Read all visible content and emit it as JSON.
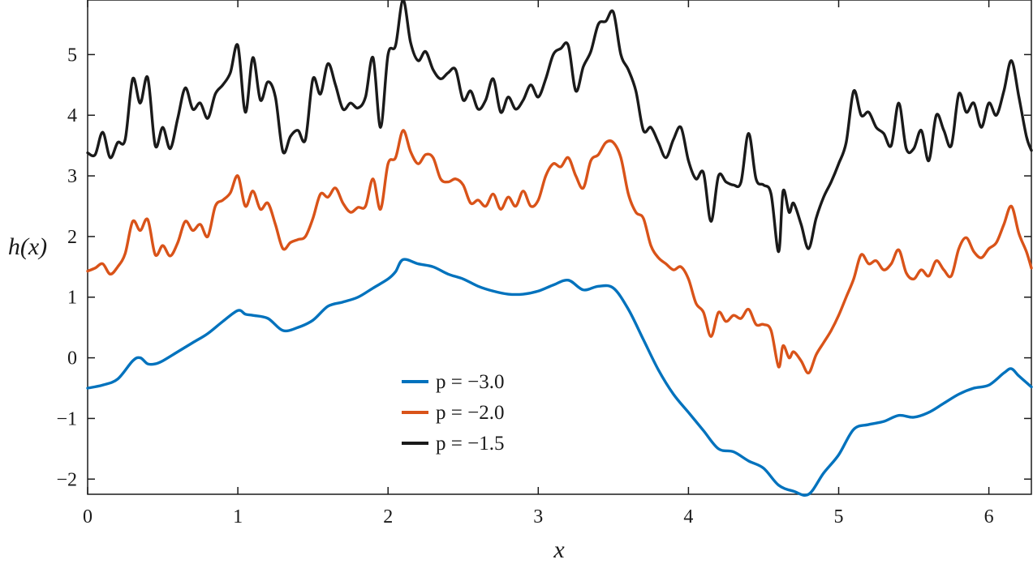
{
  "chart_data": {
    "type": "line",
    "title": "",
    "xlabel": "x",
    "ylabel": "h(x)",
    "xlim": [
      0,
      6.283
    ],
    "ylim": [
      -2.25,
      5.9
    ],
    "grid": false,
    "legend_position": "center-bottom",
    "x_ticks": [
      {
        "value": 0,
        "label": "0"
      },
      {
        "value": 1,
        "label": "1"
      },
      {
        "value": 2,
        "label": "2"
      },
      {
        "value": 3,
        "label": "3"
      },
      {
        "value": 4,
        "label": "4"
      },
      {
        "value": 5,
        "label": "5"
      },
      {
        "value": 6,
        "label": "6"
      }
    ],
    "y_ticks": [
      {
        "value": -2,
        "label": "−2"
      },
      {
        "value": -1,
        "label": "−1"
      },
      {
        "value": 0,
        "label": "0"
      },
      {
        "value": 1,
        "label": "1"
      },
      {
        "value": 2,
        "label": "2"
      },
      {
        "value": 3,
        "label": "3"
      },
      {
        "value": 4,
        "label": "4"
      },
      {
        "value": 5,
        "label": "5"
      }
    ],
    "series": [
      {
        "name": "p = −3.0",
        "color": "#0072bd",
        "x": [
          0,
          0.1,
          0.2,
          0.3,
          0.35,
          0.4,
          0.45,
          0.5,
          0.6,
          0.7,
          0.8,
          0.9,
          1.0,
          1.05,
          1.1,
          1.2,
          1.3,
          1.4,
          1.5,
          1.6,
          1.7,
          1.8,
          1.9,
          2.0,
          2.05,
          2.1,
          2.2,
          2.3,
          2.4,
          2.5,
          2.6,
          2.7,
          2.8,
          2.9,
          3.0,
          3.1,
          3.2,
          3.3,
          3.4,
          3.5,
          3.6,
          3.7,
          3.8,
          3.9,
          4.0,
          4.1,
          4.2,
          4.3,
          4.4,
          4.5,
          4.6,
          4.7,
          4.8,
          4.9,
          5.0,
          5.1,
          5.2,
          5.3,
          5.4,
          5.5,
          5.6,
          5.7,
          5.8,
          5.9,
          6.0,
          6.1,
          6.15,
          6.2,
          6.283
        ],
        "values": [
          -0.5,
          -0.45,
          -0.35,
          -0.05,
          0.0,
          -0.1,
          -0.1,
          -0.05,
          0.1,
          0.25,
          0.4,
          0.6,
          0.78,
          0.72,
          0.7,
          0.65,
          0.45,
          0.5,
          0.62,
          0.85,
          0.92,
          1.0,
          1.15,
          1.3,
          1.42,
          1.62,
          1.55,
          1.5,
          1.38,
          1.3,
          1.18,
          1.1,
          1.05,
          1.05,
          1.1,
          1.2,
          1.28,
          1.12,
          1.18,
          1.15,
          0.8,
          0.3,
          -0.2,
          -0.6,
          -0.9,
          -1.2,
          -1.5,
          -1.55,
          -1.7,
          -1.82,
          -2.1,
          -2.2,
          -2.25,
          -1.9,
          -1.6,
          -1.18,
          -1.1,
          -1.05,
          -0.95,
          -0.98,
          -0.9,
          -0.75,
          -0.6,
          -0.5,
          -0.45,
          -0.25,
          -0.18,
          -0.3,
          -0.48
        ]
      },
      {
        "name": "p = −2.0",
        "color": "#d95319",
        "x": [
          0,
          0.05,
          0.1,
          0.15,
          0.2,
          0.25,
          0.3,
          0.35,
          0.4,
          0.45,
          0.5,
          0.55,
          0.6,
          0.65,
          0.7,
          0.75,
          0.8,
          0.85,
          0.9,
          0.95,
          1.0,
          1.05,
          1.1,
          1.15,
          1.2,
          1.25,
          1.3,
          1.35,
          1.4,
          1.45,
          1.5,
          1.55,
          1.6,
          1.65,
          1.7,
          1.75,
          1.8,
          1.85,
          1.9,
          1.95,
          2.0,
          2.05,
          2.1,
          2.15,
          2.2,
          2.25,
          2.3,
          2.35,
          2.4,
          2.45,
          2.5,
          2.55,
          2.6,
          2.65,
          2.7,
          2.75,
          2.8,
          2.85,
          2.9,
          2.95,
          3.0,
          3.05,
          3.1,
          3.15,
          3.2,
          3.25,
          3.3,
          3.35,
          3.4,
          3.45,
          3.5,
          3.55,
          3.6,
          3.65,
          3.7,
          3.75,
          3.8,
          3.85,
          3.9,
          3.95,
          4.0,
          4.05,
          4.1,
          4.15,
          4.2,
          4.25,
          4.3,
          4.35,
          4.4,
          4.45,
          4.5,
          4.55,
          4.6,
          4.63,
          4.67,
          4.7,
          4.75,
          4.8,
          4.85,
          4.9,
          4.95,
          5.0,
          5.05,
          5.1,
          5.15,
          5.2,
          5.25,
          5.3,
          5.35,
          5.4,
          5.45,
          5.5,
          5.55,
          5.6,
          5.65,
          5.7,
          5.75,
          5.8,
          5.85,
          5.9,
          5.95,
          6.0,
          6.05,
          6.1,
          6.15,
          6.2,
          6.25,
          6.283
        ],
        "values": [
          1.43,
          1.48,
          1.55,
          1.38,
          1.5,
          1.72,
          2.25,
          2.1,
          2.28,
          1.7,
          1.85,
          1.68,
          1.9,
          2.25,
          2.1,
          2.2,
          2.0,
          2.5,
          2.6,
          2.72,
          3.0,
          2.5,
          2.75,
          2.45,
          2.55,
          2.2,
          1.8,
          1.9,
          1.95,
          2.0,
          2.3,
          2.7,
          2.65,
          2.8,
          2.55,
          2.4,
          2.48,
          2.5,
          2.95,
          2.45,
          3.2,
          3.3,
          3.75,
          3.4,
          3.2,
          3.35,
          3.3,
          2.95,
          2.9,
          2.95,
          2.85,
          2.55,
          2.6,
          2.5,
          2.7,
          2.45,
          2.65,
          2.5,
          2.75,
          2.5,
          2.6,
          3.0,
          3.2,
          3.15,
          3.3,
          3.0,
          2.8,
          3.25,
          3.35,
          3.55,
          3.55,
          3.3,
          2.7,
          2.4,
          2.3,
          1.85,
          1.65,
          1.55,
          1.45,
          1.5,
          1.3,
          0.9,
          0.75,
          0.35,
          0.75,
          0.6,
          0.7,
          0.65,
          0.8,
          0.55,
          0.55,
          0.45,
          -0.15,
          0.2,
          0.0,
          0.1,
          -0.05,
          -0.25,
          0.05,
          0.25,
          0.45,
          0.7,
          1.0,
          1.3,
          1.7,
          1.55,
          1.6,
          1.45,
          1.55,
          1.78,
          1.4,
          1.3,
          1.45,
          1.35,
          1.6,
          1.45,
          1.35,
          1.8,
          1.98,
          1.75,
          1.65,
          1.8,
          1.9,
          2.2,
          2.5,
          2.05,
          1.75,
          1.48
        ]
      },
      {
        "name": "p = −1.5",
        "color": "#1a1a1a",
        "x": [
          0,
          0.05,
          0.1,
          0.15,
          0.2,
          0.25,
          0.3,
          0.35,
          0.4,
          0.45,
          0.5,
          0.55,
          0.6,
          0.65,
          0.7,
          0.75,
          0.8,
          0.85,
          0.9,
          0.95,
          1.0,
          1.05,
          1.1,
          1.15,
          1.2,
          1.25,
          1.3,
          1.35,
          1.4,
          1.45,
          1.5,
          1.55,
          1.6,
          1.65,
          1.7,
          1.75,
          1.8,
          1.85,
          1.9,
          1.95,
          2.0,
          2.05,
          2.1,
          2.15,
          2.2,
          2.25,
          2.3,
          2.35,
          2.4,
          2.45,
          2.5,
          2.55,
          2.6,
          2.65,
          2.7,
          2.75,
          2.8,
          2.85,
          2.9,
          2.95,
          3.0,
          3.05,
          3.1,
          3.15,
          3.2,
          3.25,
          3.3,
          3.35,
          3.4,
          3.45,
          3.5,
          3.55,
          3.6,
          3.65,
          3.7,
          3.75,
          3.8,
          3.85,
          3.9,
          3.95,
          4.0,
          4.05,
          4.1,
          4.15,
          4.2,
          4.25,
          4.3,
          4.35,
          4.4,
          4.45,
          4.5,
          4.55,
          4.6,
          4.63,
          4.67,
          4.7,
          4.75,
          4.8,
          4.85,
          4.9,
          4.95,
          5.0,
          5.05,
          5.1,
          5.15,
          5.2,
          5.25,
          5.3,
          5.35,
          5.4,
          5.45,
          5.5,
          5.55,
          5.6,
          5.65,
          5.7,
          5.75,
          5.8,
          5.85,
          5.9,
          5.95,
          6.0,
          6.05,
          6.1,
          6.15,
          6.2,
          6.25,
          6.283
        ],
        "values": [
          3.38,
          3.35,
          3.72,
          3.3,
          3.55,
          3.6,
          4.6,
          4.2,
          4.62,
          3.5,
          3.8,
          3.45,
          3.95,
          4.45,
          4.1,
          4.2,
          3.95,
          4.35,
          4.5,
          4.7,
          5.15,
          4.05,
          4.95,
          4.25,
          4.55,
          4.3,
          3.4,
          3.65,
          3.75,
          3.6,
          4.6,
          4.35,
          4.85,
          4.5,
          4.1,
          4.2,
          4.12,
          4.3,
          4.95,
          3.8,
          5.0,
          5.15,
          5.9,
          5.2,
          4.9,
          5.05,
          4.75,
          4.6,
          4.7,
          4.75,
          4.25,
          4.4,
          4.1,
          4.25,
          4.6,
          4.05,
          4.3,
          4.1,
          4.25,
          4.5,
          4.3,
          4.6,
          5.0,
          5.1,
          5.15,
          4.4,
          4.8,
          5.05,
          5.5,
          5.55,
          5.7,
          5.0,
          4.75,
          4.4,
          3.75,
          3.8,
          3.55,
          3.3,
          3.6,
          3.8,
          3.25,
          2.95,
          3.05,
          2.25,
          3.0,
          2.9,
          2.85,
          2.9,
          3.7,
          2.95,
          2.85,
          2.7,
          1.75,
          2.75,
          2.4,
          2.55,
          2.2,
          1.8,
          2.3,
          2.65,
          2.9,
          3.2,
          3.55,
          4.4,
          4.0,
          4.05,
          3.8,
          3.7,
          3.5,
          4.2,
          3.45,
          3.45,
          3.75,
          3.25,
          4.0,
          3.75,
          3.5,
          4.35,
          4.05,
          4.2,
          3.8,
          4.2,
          4.0,
          4.4,
          4.9,
          4.3,
          3.65,
          3.42
        ]
      }
    ]
  }
}
